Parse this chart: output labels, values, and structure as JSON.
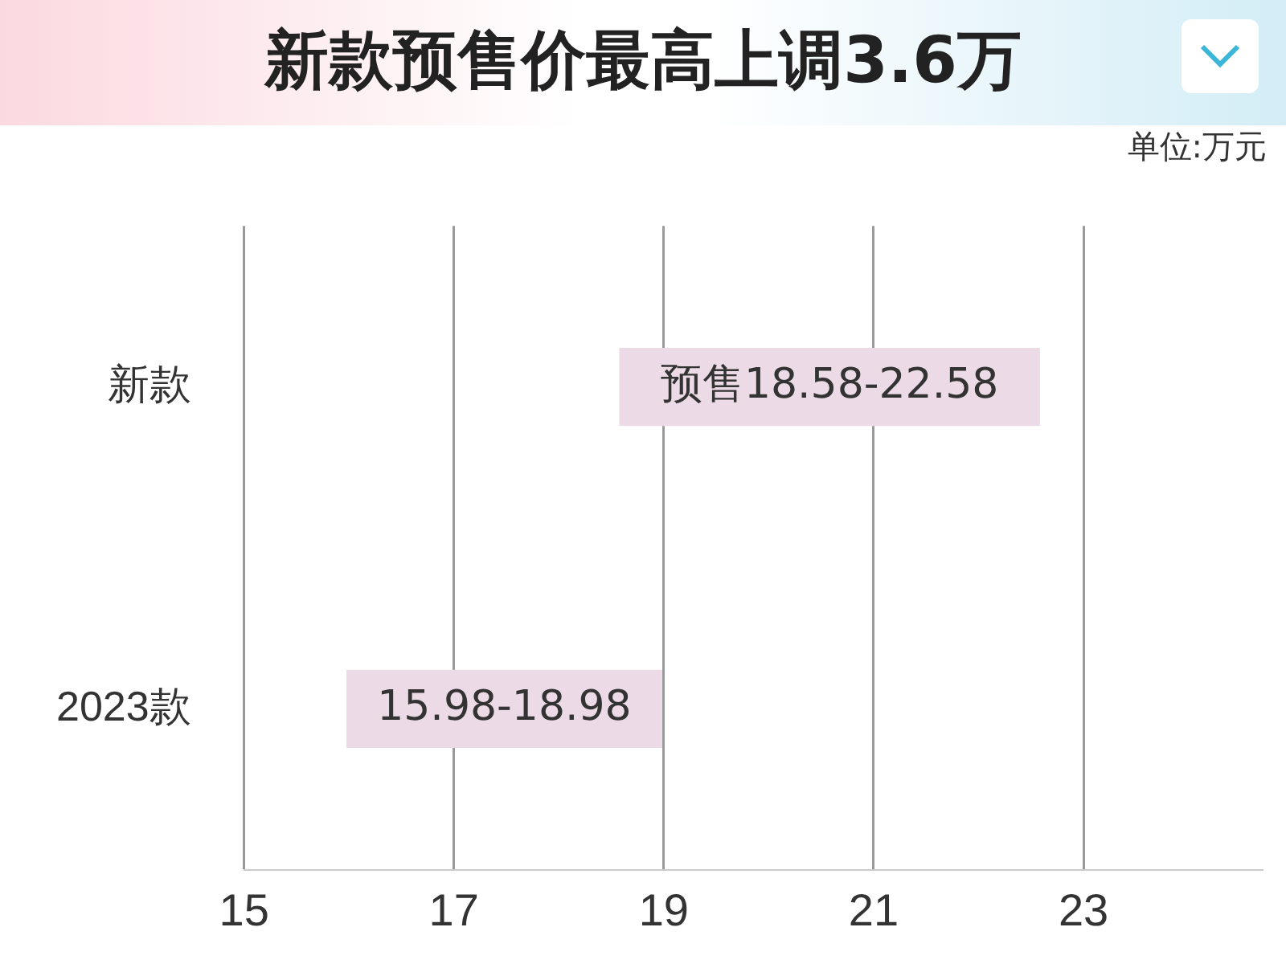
{
  "chart_data": {
    "type": "bar",
    "orientation": "horizontal",
    "title": "新款预售价最高上调3.6万",
    "annotations": [
      "单位:万元"
    ],
    "categories": [
      "新款",
      "2023款"
    ],
    "base": [
      18.58,
      15.98
    ],
    "values": [
      4,
      3
    ],
    "value_labels": [
      "预售18.58-22.58",
      "15.98-18.98"
    ],
    "colors": [
      "#ecdbe6",
      "#ecdbe6"
    ],
    "xlim": [
      15,
      24.7
    ],
    "xticks": [
      15,
      17,
      19,
      21,
      23
    ],
    "grid": "x",
    "legend": false
  }
}
